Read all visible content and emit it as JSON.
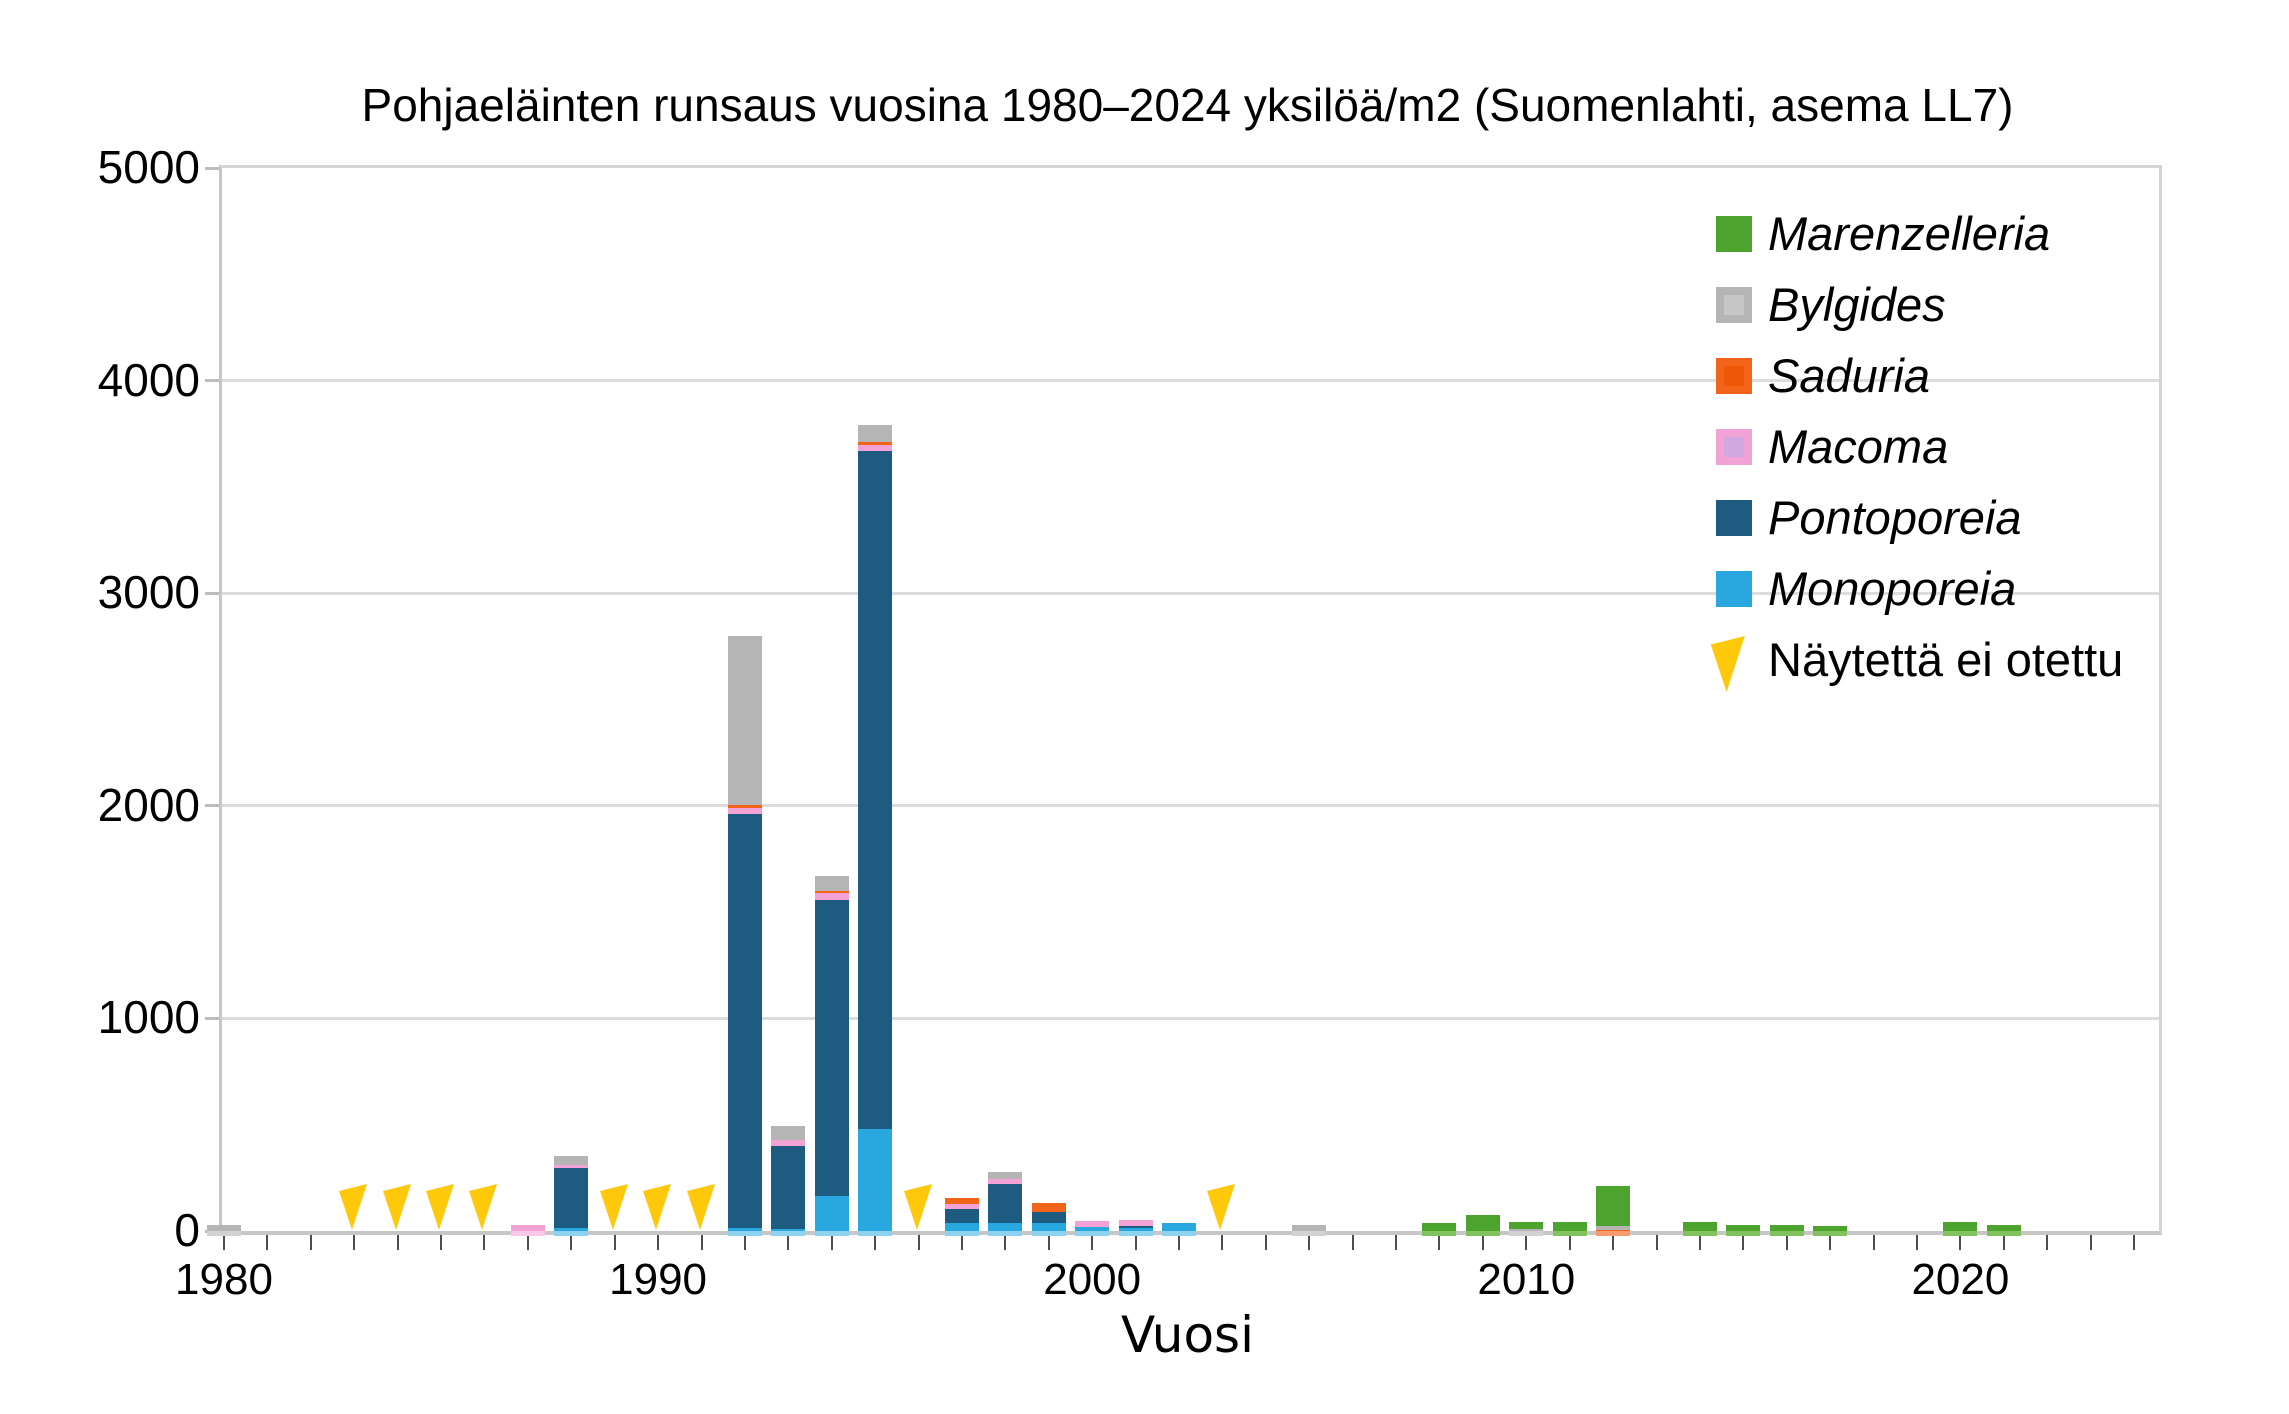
{
  "chart_data": {
    "type": "bar",
    "title": "Pohjaeläinten runsaus vuosina 1980–2024 yksilöä/m2 (Suomenlahti, asema LL7)",
    "xlabel": "Vuosi",
    "ylabel": "",
    "ylim": [
      0,
      5000
    ],
    "yticks": [
      0,
      1000,
      2000,
      3000,
      4000,
      5000
    ],
    "xticks": [
      1980,
      1990,
      2000,
      2010,
      2020
    ],
    "x_range": [
      1980,
      2024
    ],
    "grid": "horizontal",
    "legend_position": "inside-top-right",
    "stack_order_bottom_to_top": [
      "Monoporeia",
      "Pontoporeia",
      "Macoma",
      "Saduria",
      "Bylgides",
      "Marenzelleria"
    ],
    "series": [
      {
        "name": "Marenzelleria",
        "color": "#4CA42E"
      },
      {
        "name": "Bylgides",
        "color": "#B5B5B5"
      },
      {
        "name": "Saduria",
        "color": "#F26419"
      },
      {
        "name": "Macoma",
        "color": "#F2A2D5"
      },
      {
        "name": "Pontoporeia",
        "color": "#1D5B80"
      },
      {
        "name": "Monoporeia",
        "color": "#29A8E0"
      }
    ],
    "no_sample_label": "Näytettä ei otettu",
    "no_sample_marker_color": "#FFC90B",
    "no_sample_years": [
      1983,
      1984,
      1985,
      1986,
      1989,
      1990,
      1991,
      1996,
      2003
    ],
    "bars": {
      "1980": {
        "Bylgides": 30
      },
      "1987": {
        "Macoma": 30
      },
      "1988": {
        "Monoporeia": 15,
        "Pontoporeia": 280,
        "Macoma": 15,
        "Bylgides": 45
      },
      "1992": {
        "Monoporeia": 15,
        "Pontoporeia": 1945,
        "Macoma": 30,
        "Saduria": 15,
        "Bylgides": 795
      },
      "1993": {
        "Monoporeia": 10,
        "Pontoporeia": 390,
        "Macoma": 28,
        "Bylgides": 65
      },
      "1994": {
        "Monoporeia": 165,
        "Pontoporeia": 1390,
        "Macoma": 35,
        "Saduria": 10,
        "Bylgides": 70
      },
      "1995": {
        "Monoporeia": 480,
        "Pontoporeia": 3190,
        "Macoma": 25,
        "Saduria": 15,
        "Bylgides": 80
      },
      "1997": {
        "Monoporeia": 38,
        "Pontoporeia": 65,
        "Macoma": 24,
        "Saduria": 28
      },
      "1998": {
        "Monoporeia": 38,
        "Pontoporeia": 183,
        "Macoma": 23,
        "Bylgides": 33
      },
      "1999": {
        "Monoporeia": 38,
        "Pontoporeia": 51,
        "Saduria": 43
      },
      "2000": {
        "Monoporeia": 20,
        "Macoma": 27
      },
      "2001": {
        "Monoporeia": 12,
        "Pontoporeia": 10,
        "Macoma": 30
      },
      "2002": {
        "Monoporeia": 38
      },
      "2005": {
        "Bylgides": 28
      },
      "2008": {
        "Marenzelleria": 38
      },
      "2009": {
        "Marenzelleria": 75
      },
      "2010": {
        "Bylgides": 8,
        "Marenzelleria": 35
      },
      "2011": {
        "Marenzelleria": 40
      },
      "2012": {
        "Saduria": 5,
        "Bylgides": 20,
        "Marenzelleria": 185
      },
      "2014": {
        "Marenzelleria": 40
      },
      "2015": {
        "Marenzelleria": 30
      },
      "2016": {
        "Marenzelleria": 30
      },
      "2017": {
        "Marenzelleria": 25
      },
      "2020": {
        "Marenzelleria": 40
      },
      "2021": {
        "Marenzelleria": 30
      }
    },
    "colors": {
      "Marenzelleria": "#4CA42E",
      "Bylgides": "#B5B5B5",
      "Saduria": "#F26419",
      "Macoma": "#F2A2D5",
      "Pontoporeia": "#1D5B80",
      "Monoporeia": "#29A8E0",
      "no_sample_marker": "#FFC90B",
      "grid": "#DCDCDC",
      "axis": "#C6C6C6",
      "tick": "#4D4D4D"
    },
    "legend_swatch_inner": {
      "Bylgides": "#C6C6C6",
      "Saduria": "#EE5707",
      "Macoma": "#D0A7DF"
    },
    "bar_edge_tint": {
      "Monoporeia": "#8ED2F0",
      "Pontoporeia": "#4F81A0",
      "Macoma": "#F9C8E8",
      "Saduria": "#F69D70",
      "Bylgides": "#D2D2D2",
      "Marenzelleria": "#82C25F"
    }
  }
}
